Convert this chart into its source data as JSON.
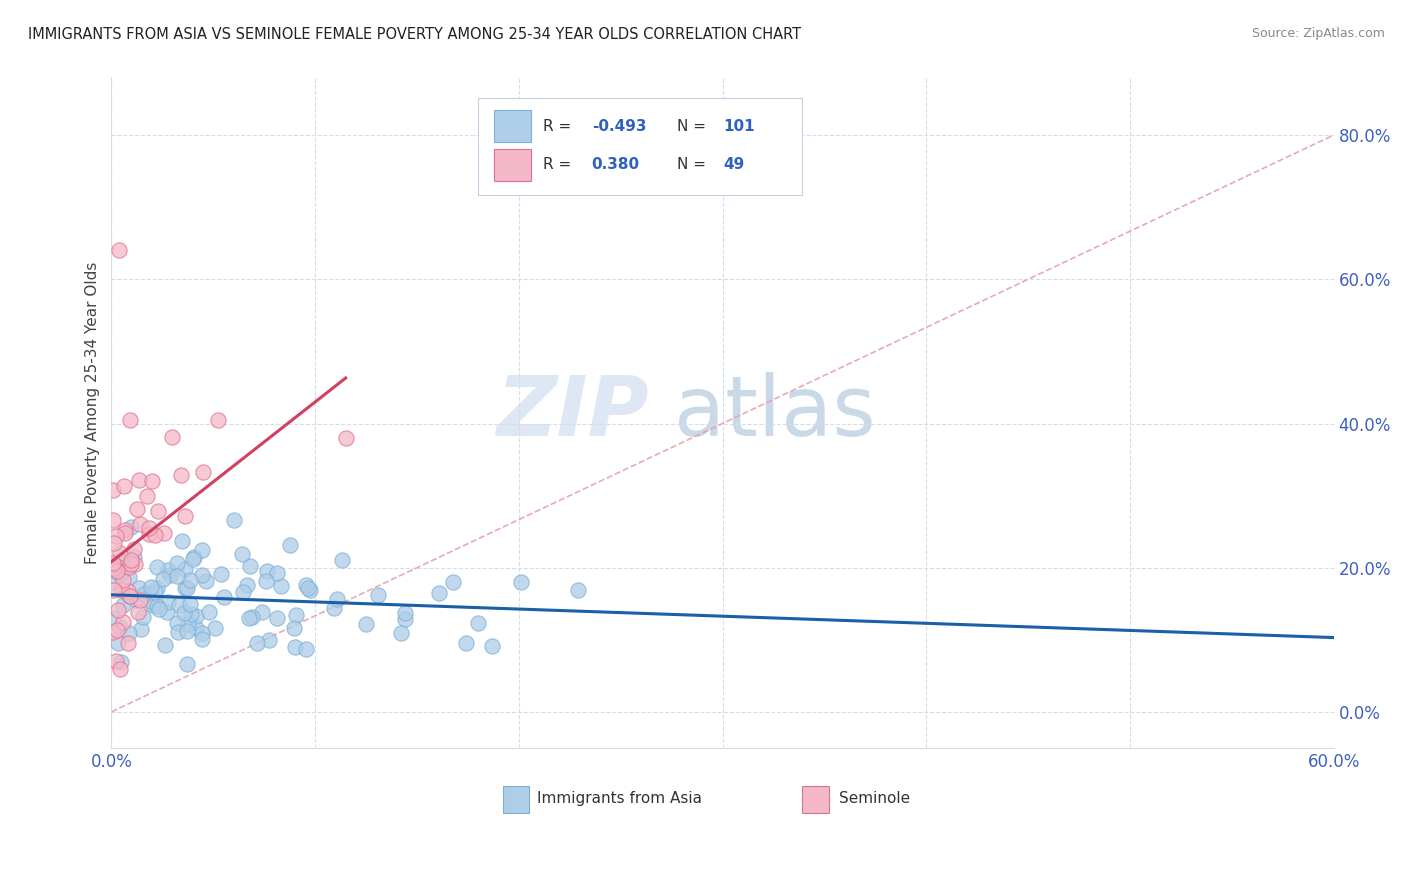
{
  "title": "IMMIGRANTS FROM ASIA VS SEMINOLE FEMALE POVERTY AMONG 25-34 YEAR OLDS CORRELATION CHART",
  "source": "Source: ZipAtlas.com",
  "ylabel": "Female Poverty Among 25-34 Year Olds",
  "xlim": [
    0.0,
    0.6
  ],
  "ylim": [
    -0.05,
    0.88
  ],
  "color_blue": "#aecde8",
  "color_blue_edge": "#7bafd4",
  "color_pink": "#f4b8c8",
  "color_pink_edge": "#e07090",
  "color_blue_line": "#1a5fa8",
  "color_pink_line": "#d04060",
  "color_diag_line": "#e8a0a8",
  "background_color": "#ffffff",
  "grid_color": "#d8dce8",
  "tick_color": "#4060c0",
  "title_color": "#222222",
  "source_color": "#888888",
  "legend_text_color": "#333333",
  "legend_val_color": "#3060c0",
  "watermark_zip_color": "#c8d8ee",
  "watermark_atlas_color": "#a8c0d8"
}
